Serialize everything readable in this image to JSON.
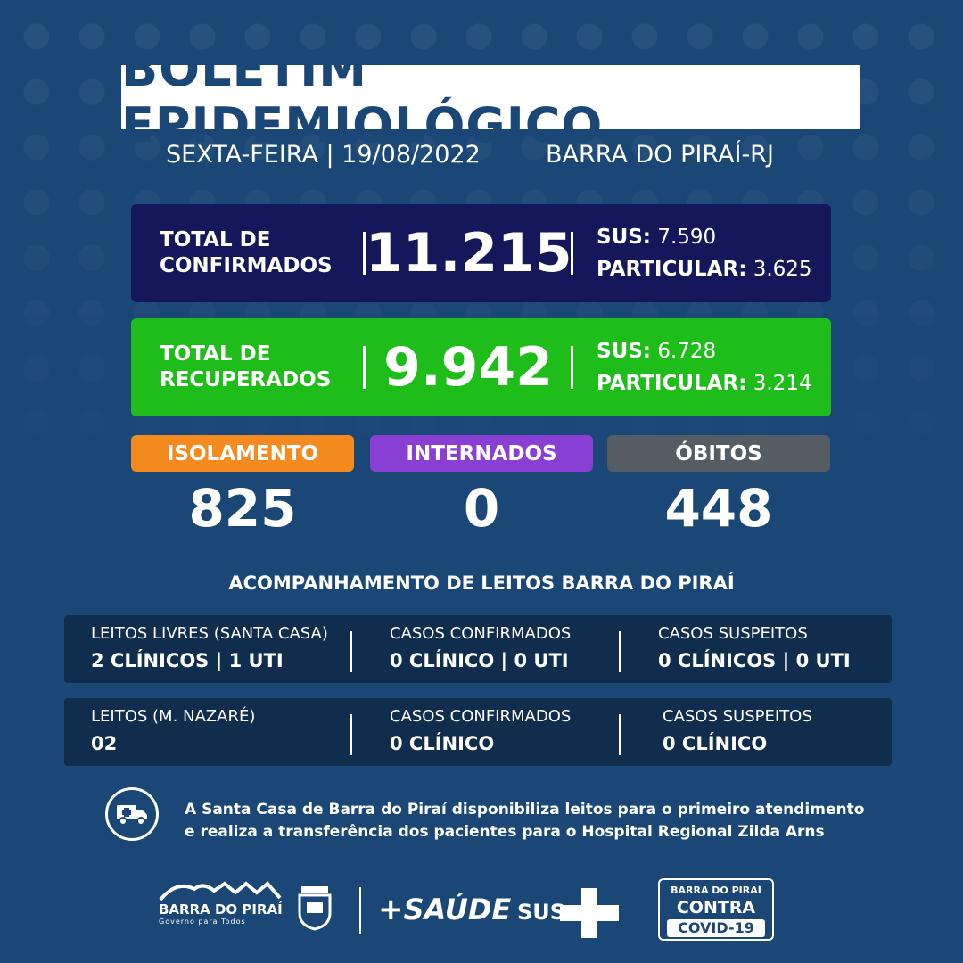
{
  "header": {
    "title": "BOLETIM EPIDEMIOLÓGICO",
    "date": "SEXTA-FEIRA | 19/08/2022",
    "city": "BARRA DO PIRAÍ-RJ"
  },
  "confirmed": {
    "label_line1": "TOTAL DE",
    "label_line2": "CONFIRMADOS",
    "total": "11.215",
    "sus_label": "SUS:",
    "sus_value": "7.590",
    "particular_label": "PARTICULAR:",
    "particular_value": "3.625"
  },
  "recovered": {
    "label_line1": "TOTAL DE",
    "label_line2": "RECUPERADOS",
    "total": "9.942",
    "sus_label": "SUS:",
    "sus_value": "6.728",
    "particular_label": "PARTICULAR:",
    "particular_value": "3.214"
  },
  "stats": {
    "isolamento_label": "ISOLAMENTO",
    "isolamento_value": "825",
    "internados_label": "INTERNADOS",
    "internados_value": "0",
    "obitos_label": "ÓBITOS",
    "obitos_value": "448"
  },
  "beds": {
    "section_title": "ACOMPANHAMENTO DE LEITOS BARRA DO PIRAÍ",
    "row1": {
      "c1_label": "LEITOS LIVRES (SANTA CASA)",
      "c1_value": "2 CLÍNICOS | 1 UTI",
      "c2_label": "CASOS CONFIRMADOS",
      "c2_value": "0 CLÍNICO | 0 UTI",
      "c3_label": "CASOS SUSPEITOS",
      "c3_value": "0 CLÍNICOS | 0 UTI"
    },
    "row2": {
      "c1_label": "LEITOS (M. NAZARÉ)",
      "c1_value": "02",
      "c2_label": "CASOS CONFIRMADOS",
      "c2_value": "0 CLÍNICO",
      "c3_label": "CASOS SUSPEITOS",
      "c3_value": "0 CLÍNICO"
    }
  },
  "info": {
    "icon": "ambulance-icon",
    "line1": "A Santa Casa de Barra do Piraí disponibiliza leitos para o primeiro atendimento",
    "line2": "e realiza a transferência dos pacientes para o Hospital Regional Zilda Arns"
  },
  "footer": {
    "pref_name": "BARRA DO PIRAÍ",
    "pref_slogan": "Governo para Todos",
    "saude": "SAÚDE",
    "sus": "SUS",
    "campaign_top": "BARRA DO PIRAÍ",
    "campaign_mid": "CONTRA",
    "campaign_bottom": "COVID-19"
  },
  "colors": {
    "background": "#1b4777",
    "confirmed": "#14185a",
    "recovered": "#1fbd1a",
    "isolamento": "#f58a1f",
    "internados": "#8a3fd4",
    "obitos": "#555c63",
    "rows": "#102d4e"
  }
}
